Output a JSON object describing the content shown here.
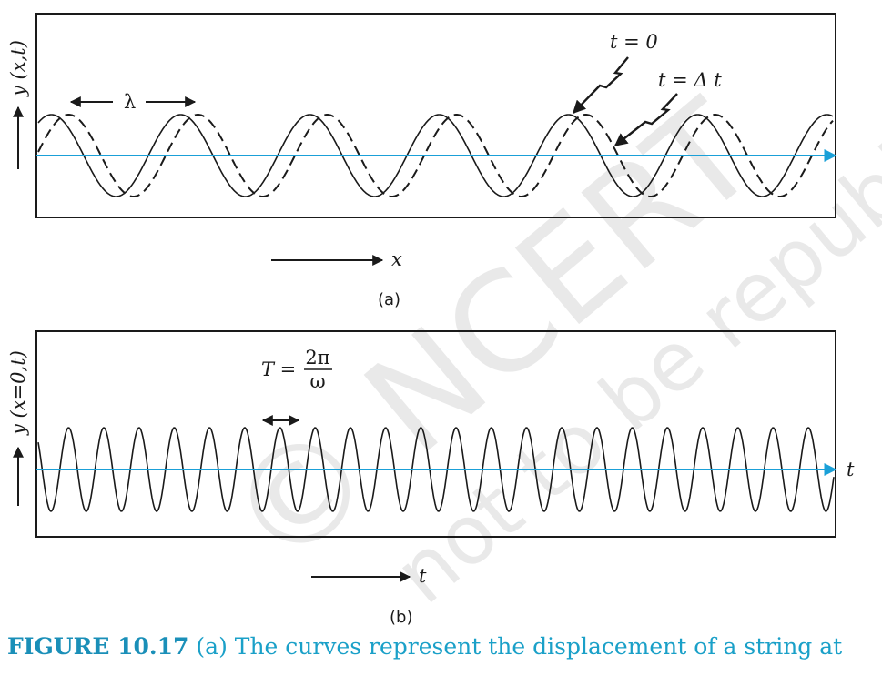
{
  "watermark": {
    "line1": "© NCERT",
    "line2": "not to be republished"
  },
  "panel_a": {
    "y_axis_label": "y (x,t)",
    "x_axis_label": "x",
    "wavelength_label": "λ",
    "curve_t0_label": "t = 0",
    "curve_dt_label": "t = Δ t",
    "sublabel": "(a)"
  },
  "panel_b": {
    "y_axis_label": "y (x=0,t)",
    "x_axis_label": "t",
    "time_axis_end_label": "t",
    "period_label": "T =",
    "period_numerator": "2π",
    "period_denominator": "ω",
    "sublabel": "(b)"
  },
  "caption": {
    "figure_number": "FIGURE 10.17",
    "text": "(a) The curves represent the displacement of a string at"
  },
  "colors": {
    "axis": "#1aa0d8",
    "curve": "#1a1a1a",
    "caption": "#1aa0c8"
  }
}
